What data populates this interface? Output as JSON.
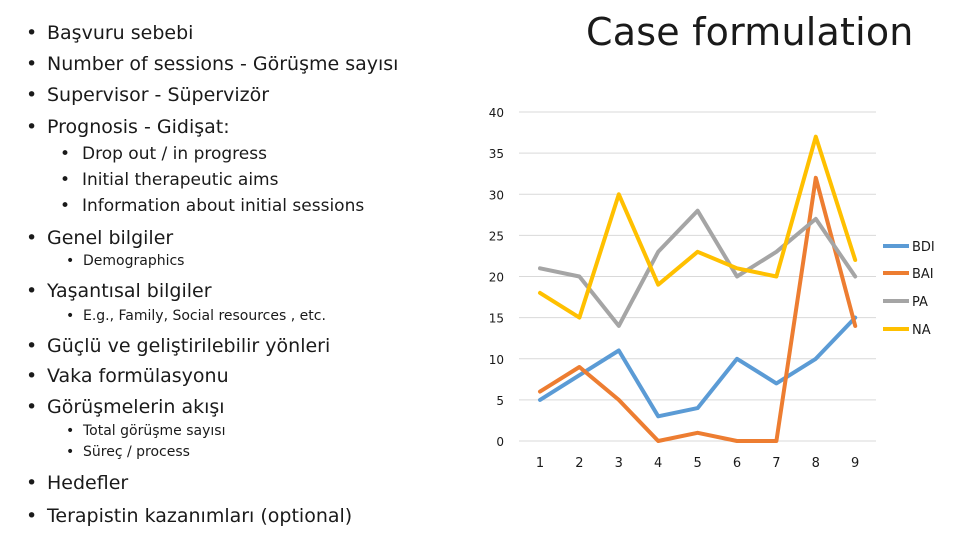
{
  "slide": {
    "title": "Case formulation"
  },
  "bullets": [
    {
      "text": "Başvuru sebebi",
      "level": 1
    },
    {
      "text": "Number of sessions - Görüşme sayısı",
      "level": 1
    },
    {
      "text": "Supervisor - Süpervizör",
      "level": 1
    },
    {
      "text": "Prognosis - Gidişat:",
      "level": 1
    },
    {
      "text": "Drop out / in progress",
      "level": 2
    },
    {
      "text": "Initial therapeutic aims",
      "level": 2
    },
    {
      "text": "Information about initial sessions",
      "level": 2
    },
    {
      "text": "Genel bilgiler",
      "level": 1
    },
    {
      "text": "Demographics",
      "level": 3
    },
    {
      "text": "Yaşantısal bilgiler",
      "level": 1
    },
    {
      "text": "E.g., Family, Social resources , etc.",
      "level": 3
    },
    {
      "text": "Güçlü ve geliştirilebilir yönleri",
      "level": 1
    },
    {
      "text": "Vaka formülasyonu",
      "level": 1
    },
    {
      "text": "Görüşmelerin akışı",
      "level": 1
    },
    {
      "text": "Total görüşme sayısı",
      "level": 3
    },
    {
      "text": "Süreç / process",
      "level": 3
    },
    {
      "text": "Hedefler",
      "level": 1
    },
    {
      "text": "Terapistin kazanımları (optional)",
      "level": 1
    }
  ],
  "chart_data": {
    "type": "line",
    "x": [
      1,
      2,
      3,
      4,
      5,
      6,
      7,
      8,
      9
    ],
    "ylim": [
      0,
      40
    ],
    "yticks": [
      0,
      5,
      10,
      15,
      20,
      25,
      30,
      35,
      40
    ],
    "grid": true,
    "legend": "right",
    "series": [
      {
        "name": "BDI",
        "color": "#5B9BD5",
        "values": [
          5,
          8,
          11,
          3,
          4,
          10,
          7,
          10,
          15
        ]
      },
      {
        "name": "BAI",
        "color": "#ED7D31",
        "values": [
          6,
          9,
          5,
          0,
          1,
          0,
          0,
          32,
          14
        ]
      },
      {
        "name": "PA",
        "color": "#A5A5A5",
        "values": [
          21,
          20,
          14,
          23,
          28,
          20,
          23,
          27,
          20
        ]
      },
      {
        "name": "NA",
        "color": "#FFC000",
        "values": [
          18,
          15,
          30,
          19,
          23,
          21,
          20,
          37,
          22
        ]
      }
    ]
  }
}
